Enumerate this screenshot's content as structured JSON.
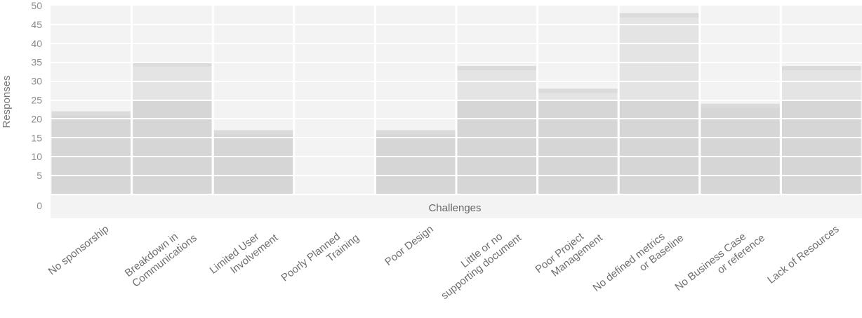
{
  "chart_data": {
    "type": "bar",
    "title": "",
    "xlabel": "Challenges",
    "ylabel": "Responses",
    "ylim": [
      0,
      50
    ],
    "yticks": [
      0,
      5,
      10,
      15,
      20,
      25,
      30,
      35,
      40,
      45,
      50
    ],
    "categories": [
      "No sponsorship",
      "Breakdown in\nCommunications",
      "Limited User\nInvolvement",
      "Poorly Planned\nTraining",
      "Poor Design",
      "Little or no\nsupporting document",
      "Poor Project\nManagement",
      "No defined metrics\nor Baseline",
      "No Business Case\nor reference",
      "Lack of Resources"
    ],
    "values": [
      22,
      35,
      17,
      0,
      17,
      34,
      28,
      48,
      24,
      34
    ],
    "grid": true,
    "legend": "none",
    "colors": {
      "background": "#f3f3f3",
      "bar_dark": "#d6d6d6",
      "bar_mid": "#e4e4e4",
      "bar_top": "#dbdbdb",
      "gridline": "#ffffff",
      "text": "#777777"
    }
  }
}
